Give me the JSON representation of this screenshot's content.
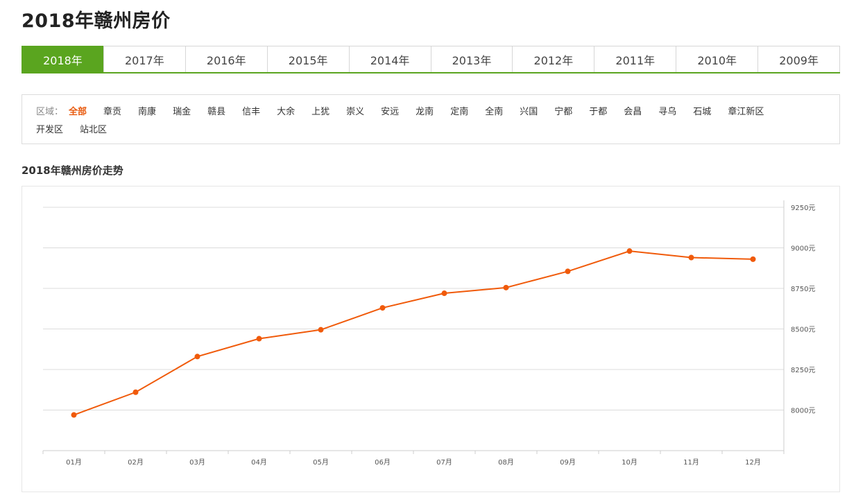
{
  "page": {
    "title": "2018年赣州房价"
  },
  "year_tabs": [
    {
      "label": "2018年",
      "active": true
    },
    {
      "label": "2017年",
      "active": false
    },
    {
      "label": "2016年",
      "active": false
    },
    {
      "label": "2015年",
      "active": false
    },
    {
      "label": "2014年",
      "active": false
    },
    {
      "label": "2013年",
      "active": false
    },
    {
      "label": "2012年",
      "active": false
    },
    {
      "label": "2011年",
      "active": false
    },
    {
      "label": "2010年",
      "active": false
    },
    {
      "label": "2009年",
      "active": false
    }
  ],
  "area_filter": {
    "label": "区域：",
    "items": [
      {
        "label": "全部",
        "active": true
      },
      {
        "label": "章贡"
      },
      {
        "label": "南康"
      },
      {
        "label": "瑞金"
      },
      {
        "label": "赣县"
      },
      {
        "label": "信丰"
      },
      {
        "label": "大余"
      },
      {
        "label": "上犹"
      },
      {
        "label": "崇义"
      },
      {
        "label": "安远"
      },
      {
        "label": "龙南"
      },
      {
        "label": "定南"
      },
      {
        "label": "全南"
      },
      {
        "label": "兴国"
      },
      {
        "label": "宁都"
      },
      {
        "label": "于都"
      },
      {
        "label": "会昌"
      },
      {
        "label": "寻乌"
      },
      {
        "label": "石城"
      },
      {
        "label": "章江新区"
      }
    ],
    "items_row2": [
      {
        "label": "开发区"
      },
      {
        "label": "站北区"
      }
    ]
  },
  "chart_section": {
    "title": "2018年赣州房价走势"
  },
  "chart_data": {
    "type": "line",
    "title": "2018年赣州房价走势",
    "categories": [
      "01月",
      "02月",
      "03月",
      "04月",
      "05月",
      "06月",
      "07月",
      "08月",
      "09月",
      "10月",
      "11月",
      "12月"
    ],
    "series": [
      {
        "values": [
          7970,
          8110,
          8330,
          8440,
          8495,
          8630,
          8720,
          8755,
          8855,
          8980,
          8940,
          8930
        ]
      }
    ],
    "y_ticks": [
      "8000元",
      "8250元",
      "8500元",
      "8750元",
      "9000元",
      "9250元"
    ],
    "y_tick_values": [
      8000,
      8250,
      8500,
      8750,
      9000,
      9250
    ],
    "ylim": [
      7750,
      9250
    ],
    "y_axis_position": "right",
    "grid": true,
    "line_color": "#f05a0a"
  }
}
